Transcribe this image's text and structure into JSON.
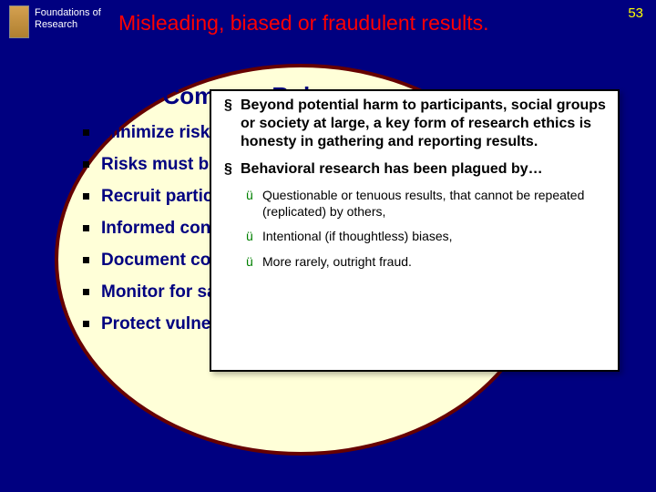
{
  "header": {
    "course": "Foundations of Research",
    "title": "Misleading, biased or fraudulent results.",
    "slide_number": "53"
  },
  "oval": {
    "title": "The Common Rule",
    "items": [
      "Minimize risks",
      "Risks must be",
      "Recruit partic",
      "Informed cons",
      "Document cor",
      "Monitor for sa",
      "Protect vulner & maintain co"
    ]
  },
  "overlay": {
    "p1": "Beyond potential harm to participants, social groups or society at large, a key form of research ethics is honesty in gathering and reporting results.",
    "p2": "Behavioral research has been plagued by…",
    "s1": "Questionable or tenuous results, that cannot be repeated (replicated) by others,",
    "s2": "Intentional (if thoughtless) biases,",
    "s3": "More rarely, outright fraud."
  }
}
